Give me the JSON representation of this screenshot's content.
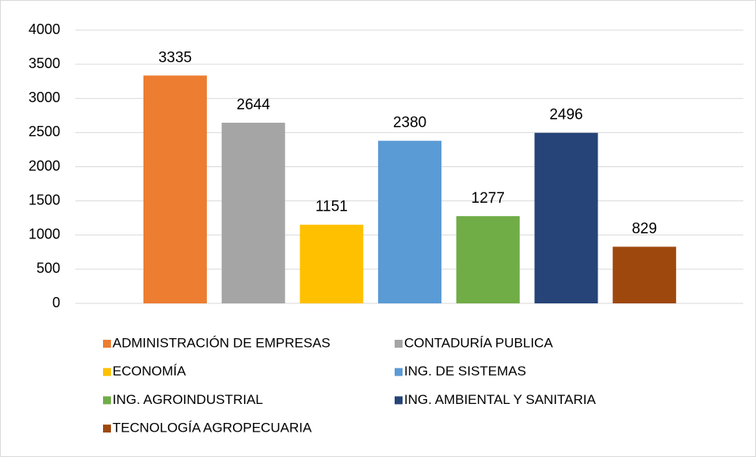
{
  "chart_data": {
    "type": "bar",
    "categories": [
      "ADMINISTRACIÓN DE EMPRESAS",
      "CONTADURÍA PUBLICA",
      "ECONOMÍA",
      "ING. DE SISTEMAS",
      "ING. AGROINDUSTRIAL",
      "ING. AMBIENTAL Y SANITARIA",
      "TECNOLOGÍA AGROPECUARIA"
    ],
    "values": [
      3335,
      2644,
      1151,
      2380,
      1277,
      2496,
      829
    ],
    "colors": [
      "#ed7d31",
      "#a5a5a5",
      "#ffc000",
      "#5b9bd5",
      "#70ad47",
      "#264478",
      "#9e480e"
    ],
    "ylim": [
      0,
      4000
    ],
    "yticks": [
      0,
      500,
      1000,
      1500,
      2000,
      2500,
      3000,
      3500,
      4000
    ],
    "grid": true,
    "legend": "bottom"
  }
}
